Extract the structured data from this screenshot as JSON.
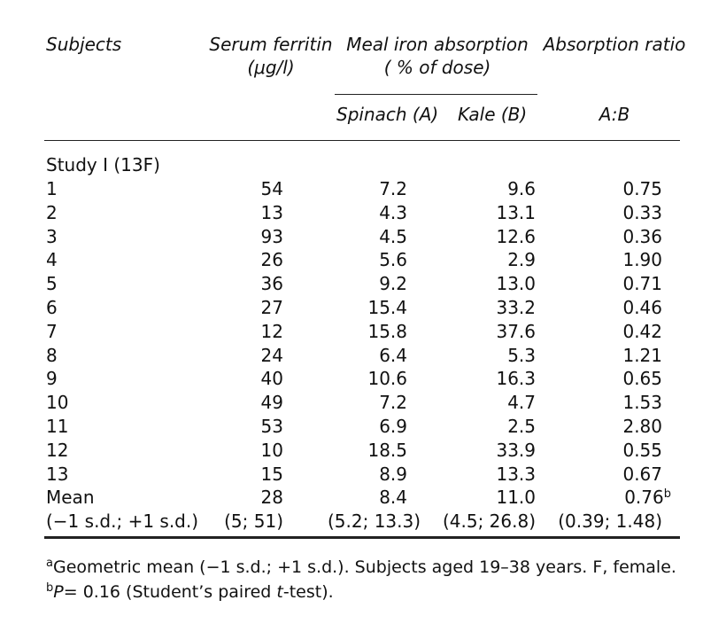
{
  "header": {
    "col_subjects": "Subjects",
    "col_ferritin_line1": "Serum ferritin",
    "col_ferritin_line2": "(μg/l)",
    "col_absorption_line1": "Meal iron absorption",
    "col_absorption_line2": "( % of dose)",
    "col_ratio": "Absorption ratio",
    "sub_spinach": "Spinach (A)",
    "sub_kale": "Kale (B)",
    "sub_ratio": "A:B"
  },
  "study_label": "Study I (13F)",
  "rows": [
    {
      "subject": "1",
      "ferritin": "54",
      "spinach": "7.2",
      "kale": "9.6",
      "ratio": "0.75"
    },
    {
      "subject": "2",
      "ferritin": "13",
      "spinach": "4.3",
      "kale": "13.1",
      "ratio": "0.33"
    },
    {
      "subject": "3",
      "ferritin": "93",
      "spinach": "4.5",
      "kale": "12.6",
      "ratio": "0.36"
    },
    {
      "subject": "4",
      "ferritin": "26",
      "spinach": "5.6",
      "kale": "2.9",
      "ratio": "1.90"
    },
    {
      "subject": "5",
      "ferritin": "36",
      "spinach": "9.2",
      "kale": "13.0",
      "ratio": "0.71"
    },
    {
      "subject": "6",
      "ferritin": "27",
      "spinach": "15.4",
      "kale": "33.2",
      "ratio": "0.46"
    },
    {
      "subject": "7",
      "ferritin": "12",
      "spinach": "15.8",
      "kale": "37.6",
      "ratio": "0.42"
    },
    {
      "subject": "8",
      "ferritin": "24",
      "spinach": "6.4",
      "kale": "5.3",
      "ratio": "1.21"
    },
    {
      "subject": "9",
      "ferritin": "40",
      "spinach": "10.6",
      "kale": "16.3",
      "ratio": "0.65"
    },
    {
      "subject": "10",
      "ferritin": "49",
      "spinach": "7.2",
      "kale": "4.7",
      "ratio": "1.53"
    },
    {
      "subject": "11",
      "ferritin": "53",
      "spinach": "6.9",
      "kale": "2.5",
      "ratio": "2.80"
    },
    {
      "subject": "12",
      "ferritin": "10",
      "spinach": "18.5",
      "kale": "33.9",
      "ratio": "0.55"
    },
    {
      "subject": "13",
      "ferritin": "15",
      "spinach": "8.9",
      "kale": "13.3",
      "ratio": "0.67"
    },
    {
      "subject": "Mean",
      "ferritin": "28",
      "spinach": "8.4",
      "kale": "11.0",
      "ratio": "0.76",
      "ratio_sup": "b"
    },
    {
      "subject": "(−1 s.d.; +1 s.d.)",
      "ferritin": "(5; 51)",
      "spinach": "(5.2; 13.3)",
      "kale": "(4.5; 26.8)",
      "ratio": "(0.39; 1.48)"
    }
  ],
  "footnotes": {
    "a_mark": "a",
    "a_text": "Geometric mean (−1 s.d.; +1 s.d.). Subjects aged 19–38 years. F, female.",
    "b_mark": "b",
    "b_p": "P",
    "b_eq": "= 0.16 (Student’s paired ",
    "b_t": "t",
    "b_tail": "-test)."
  }
}
